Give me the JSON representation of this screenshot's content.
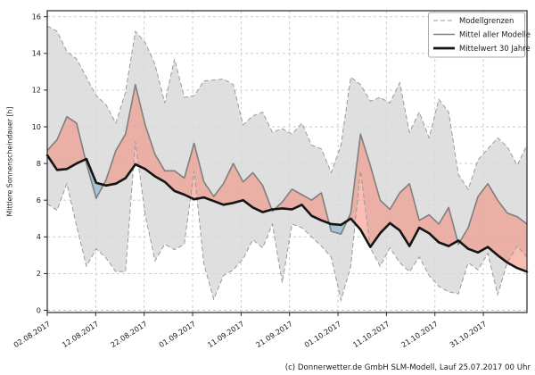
{
  "chart": {
    "y_axis": {
      "label": "Mittlere Sonnenscheindauer [h]",
      "min": 0,
      "max": 16,
      "step": 2,
      "tick_labels": [
        "0",
        "2",
        "4",
        "6",
        "8",
        "10",
        "12",
        "14",
        "16"
      ]
    },
    "x_axis": {
      "tick_labels": [
        "02.08.2017",
        "12.08.2017",
        "22.08.2017",
        "01.09.2017",
        "11.09.2017",
        "21.09.2017",
        "01.10.2017",
        "11.10.2017",
        "21.10.2017",
        "31.10.2017"
      ],
      "tick_days": [
        0,
        10,
        20,
        30,
        40,
        50,
        60,
        70,
        80,
        90
      ],
      "total_days": 99
    },
    "legend": [
      {
        "label": "Modellgrenzen",
        "style": "dashed-gray"
      },
      {
        "label": "Mittel aller Modelle",
        "style": "solid-gray"
      },
      {
        "label": "Mittelwert 30 Jahre",
        "style": "solid-black"
      }
    ],
    "colors": {
      "band_fill": "#d8d8d8",
      "band_opacity": 0.82,
      "above_fill": "rgba(242,134,116,0.55)",
      "below_fill": "rgba(105,172,205,0.50)",
      "boundary_line": "#9a9a9a",
      "mean_line": "#7f7f7f",
      "normal_line": "#141414",
      "grid_line": "#c8c8c8",
      "frame": "#262626"
    }
  },
  "chart_data": {
    "type": "area",
    "title": "",
    "xlabel": "",
    "ylabel": "Mittlere Sonnenscheindauer [h]",
    "ylim": [
      0,
      16
    ],
    "grid": true,
    "legend_position": "top-right",
    "x_start_date": "02.08.2017",
    "x_end_date": "09.11.2017",
    "sample_step_days": 2,
    "series": [
      {
        "name": "Modellgrenze oben",
        "role": "upper-bound",
        "values": [
          15.5,
          15.2,
          14.1,
          13.7,
          12.7,
          11.7,
          11.2,
          10.2,
          11.9,
          15.2,
          14.6,
          13.4,
          11.3,
          13.7,
          11.6,
          11.7,
          12.5,
          12.55,
          12.6,
          12.3,
          10.1,
          10.6,
          10.8,
          9.7,
          9.9,
          9.6,
          10.2,
          9.0,
          8.8,
          7.5,
          9.0,
          12.7,
          12.3,
          11.4,
          11.6,
          11.3,
          12.4,
          9.7,
          10.8,
          9.4,
          11.5,
          10.8,
          7.4,
          6.6,
          8.2,
          8.8,
          9.4,
          8.9,
          7.9,
          9.0
        ]
      },
      {
        "name": "Modellgrenze unten",
        "role": "lower-bound",
        "values": [
          5.8,
          5.45,
          6.9,
          4.6,
          2.4,
          3.35,
          2.85,
          2.1,
          2.1,
          9.2,
          5.2,
          2.7,
          3.6,
          3.3,
          3.6,
          7.6,
          2.5,
          0.6,
          1.9,
          2.2,
          2.8,
          3.85,
          3.4,
          4.7,
          1.5,
          4.7,
          4.5,
          4.0,
          3.5,
          2.9,
          0.55,
          2.4,
          7.6,
          3.4,
          2.4,
          3.4,
          2.6,
          2.1,
          2.9,
          1.9,
          1.3,
          1.0,
          0.9,
          2.6,
          2.2,
          3.1,
          0.85,
          2.6,
          3.5,
          2.9
        ]
      },
      {
        "name": "Mittel aller Modelle",
        "role": "model-mean",
        "values": [
          8.7,
          9.3,
          10.55,
          10.2,
          8.0,
          6.1,
          7.1,
          8.7,
          9.6,
          12.3,
          10.1,
          8.5,
          7.6,
          7.6,
          7.2,
          9.1,
          7.0,
          6.2,
          6.9,
          8.0,
          7.0,
          7.5,
          6.8,
          5.4,
          5.9,
          6.6,
          6.3,
          6.0,
          6.4,
          4.3,
          4.15,
          5.3,
          9.6,
          7.9,
          6.0,
          5.5,
          6.4,
          6.9,
          4.9,
          5.2,
          4.7,
          5.6,
          3.6,
          4.5,
          6.2,
          6.9,
          6.0,
          5.3,
          5.1,
          4.7
        ]
      },
      {
        "name": "Mittelwert 30 Jahre",
        "role": "climate-normal",
        "values": [
          8.45,
          7.65,
          7.7,
          8.0,
          8.25,
          6.95,
          6.8,
          6.9,
          7.2,
          7.95,
          7.7,
          7.3,
          7.0,
          6.5,
          6.3,
          6.05,
          6.15,
          5.95,
          5.75,
          5.85,
          6.0,
          5.6,
          5.35,
          5.5,
          5.55,
          5.5,
          5.75,
          5.15,
          4.9,
          4.7,
          4.65,
          5.0,
          4.4,
          3.45,
          4.2,
          4.75,
          4.35,
          3.5,
          4.5,
          4.2,
          3.7,
          3.5,
          3.8,
          3.35,
          3.15,
          3.45,
          3.0,
          2.6,
          2.3,
          2.1
        ]
      }
    ]
  },
  "footer": {
    "copyright": "(c) Donnerwetter.de GmbH SLM-Modell, Lauf 25.07.2017 00 Uhr"
  }
}
